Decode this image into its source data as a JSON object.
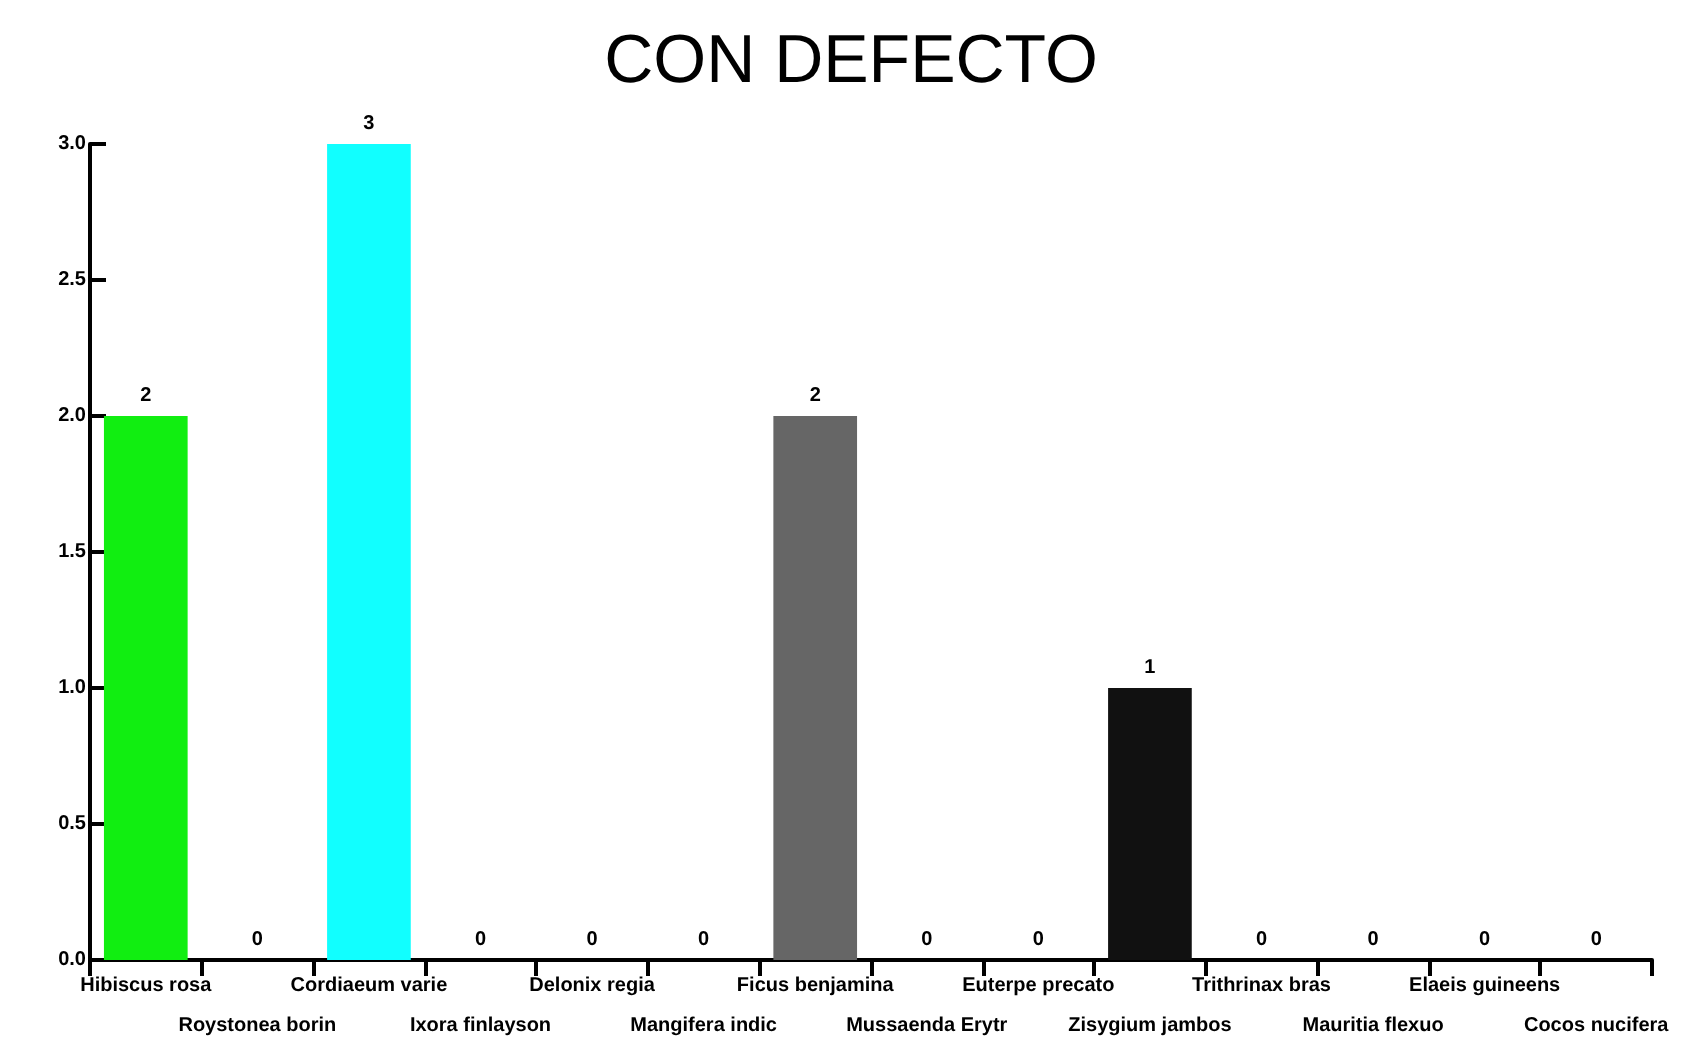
{
  "chart_data": {
    "type": "bar",
    "title": "CON DEFECTO",
    "categories": [
      "Hibiscus rosa",
      "Roystonea borin",
      "Cordiaeum varie",
      "Ixora finlayson",
      "Delonix regia",
      "Mangifera indic",
      "Ficus benjamina",
      "Mussaenda Erytr",
      "Euterpe precato",
      "Zisygium jambos",
      "Trithrinax bras",
      "Mauritia flexuo",
      "Elaeis guineens",
      "Cocos nucifera"
    ],
    "values": [
      2,
      0,
      3,
      0,
      0,
      0,
      2,
      0,
      0,
      1,
      0,
      0,
      0,
      0
    ],
    "colors": [
      "#11ee11",
      "#888888",
      "#11ffff",
      "#888888",
      "#888888",
      "#888888",
      "#666666",
      "#888888",
      "#888888",
      "#111111",
      "#888888",
      "#888888",
      "#888888",
      "#888888"
    ],
    "ylim": [
      0,
      3
    ],
    "yticks": [
      {
        "value": 0,
        "label": "0.0"
      },
      {
        "value": 0.5,
        "label": "0.5"
      },
      {
        "value": 1,
        "label": "1.0"
      },
      {
        "value": 1.5,
        "label": "1.5"
      },
      {
        "value": 2,
        "label": "2.0"
      },
      {
        "value": 2.5,
        "label": "2.5"
      },
      {
        "value": 3,
        "label": "3.0"
      }
    ],
    "data_labels": true
  }
}
